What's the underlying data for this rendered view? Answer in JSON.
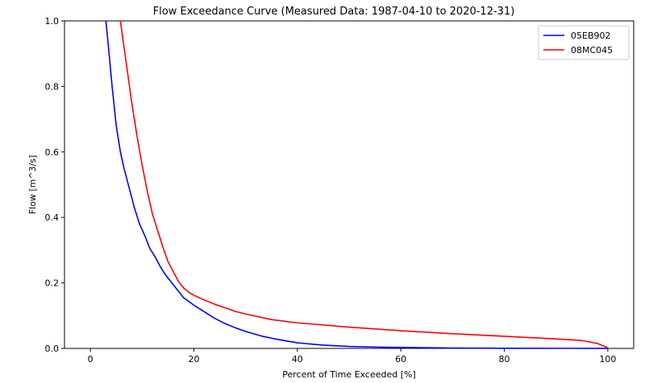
{
  "chart_data": {
    "type": "line",
    "title": "Flow Exceedance Curve (Measured Data: 1987-04-10 to 2020-12-31)",
    "xlabel": "Percent of Time Exceeded [%]",
    "ylabel": "Flow [m^3/s]",
    "xlim": [
      -5,
      105
    ],
    "ylim": [
      0,
      1.0
    ],
    "xticks": [
      0,
      20,
      40,
      60,
      80,
      100
    ],
    "xtick_labels": [
      "0",
      "20",
      "40",
      "60",
      "80",
      "100"
    ],
    "yticks": [
      0.0,
      0.2,
      0.4,
      0.6,
      0.8,
      1.0
    ],
    "ytick_labels": [
      "0.0",
      "0.2",
      "0.4",
      "0.6",
      "0.8",
      "1.0"
    ],
    "grid": false,
    "legend_position": "top-right",
    "series": [
      {
        "name": "05EB902",
        "color": "#0000ff",
        "x": [
          3.0,
          3.5,
          4.2,
          5.0,
          5.8,
          6.5,
          7.5,
          8.5,
          9.5,
          10.5,
          11.5,
          12.5,
          13.5,
          14.5,
          16,
          17,
          18,
          20,
          22,
          24,
          26,
          28,
          30,
          33,
          36,
          40,
          45,
          50,
          55,
          60,
          65,
          70,
          80,
          90,
          100
        ],
        "y": [
          1.0,
          0.92,
          0.8,
          0.68,
          0.6,
          0.55,
          0.49,
          0.43,
          0.38,
          0.345,
          0.305,
          0.28,
          0.25,
          0.225,
          0.195,
          0.175,
          0.155,
          0.132,
          0.112,
          0.092,
          0.076,
          0.063,
          0.052,
          0.038,
          0.028,
          0.017,
          0.01,
          0.006,
          0.004,
          0.003,
          0.002,
          0.001,
          0.0005,
          0.0003,
          0.0001
        ]
      },
      {
        "name": "08MC045",
        "color": "#ff0000",
        "x": [
          5.8,
          6.5,
          7.3,
          8.0,
          9.0,
          10.0,
          11.0,
          12.0,
          13.0,
          14.0,
          15.0,
          16.0,
          17.0,
          18.0,
          19.0,
          20.0,
          22,
          24,
          26,
          28,
          30,
          35,
          40,
          50,
          60,
          70,
          80,
          90,
          95,
          98,
          100
        ],
        "y": [
          1.0,
          0.92,
          0.83,
          0.75,
          0.65,
          0.56,
          0.48,
          0.41,
          0.36,
          0.31,
          0.265,
          0.235,
          0.205,
          0.185,
          0.172,
          0.162,
          0.148,
          0.135,
          0.124,
          0.113,
          0.105,
          0.088,
          0.078,
          0.065,
          0.054,
          0.045,
          0.037,
          0.029,
          0.024,
          0.015,
          0.002
        ]
      }
    ]
  }
}
